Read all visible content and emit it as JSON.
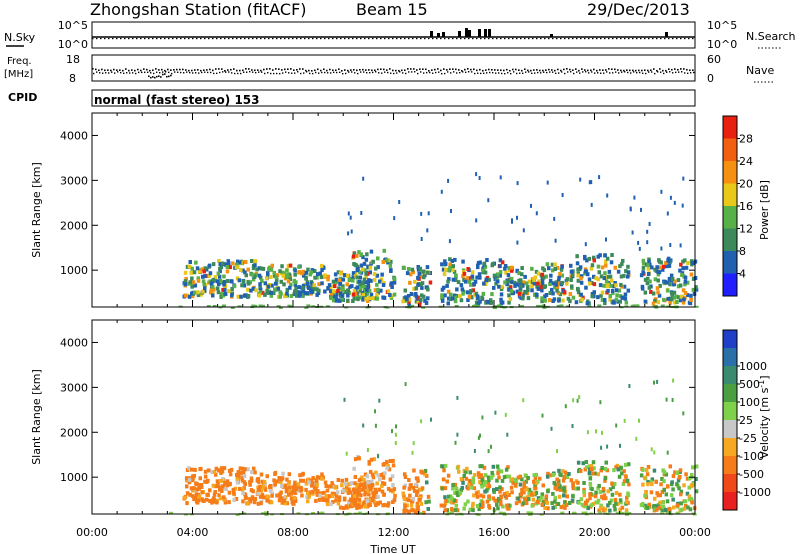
{
  "header": {
    "title": "Zhongshan Station (fitACF)",
    "beam": "Beam 15",
    "date": "29/Dec/2013"
  },
  "nsky_panel": {
    "left_label": "N.Sky",
    "left_ticks": [
      "10^5",
      "10^0"
    ],
    "right_label": "N.Search",
    "right_ticks": [
      "10^5",
      "10^0"
    ]
  },
  "freq_panel": {
    "left_label_top": "Freq.",
    "left_label_bottom": "[MHz]",
    "left_ticks": [
      "18",
      "8"
    ],
    "right_label": "Nave",
    "right_ticks": [
      "60",
      "0"
    ]
  },
  "cpid": {
    "label": "CPID",
    "value": "normal (fast stereo) 153"
  },
  "x_axis": {
    "title": "Time UT",
    "ticks": [
      "00:00",
      "04:00",
      "08:00",
      "12:00",
      "16:00",
      "20:00",
      "00:00"
    ]
  },
  "colors": {
    "power_scale": [
      "#1f1fff",
      "#2060b0",
      "#3c8a5a",
      "#58b048",
      "#e8c818",
      "#f59010",
      "#f06010",
      "#e82010"
    ],
    "velocity_scale": [
      "#e82020",
      "#f04818",
      "#f57c18",
      "#f6a820",
      "#c8c8c8",
      "#7fd04a",
      "#4aa040",
      "#3a8a70",
      "#2a70a8",
      "#2040c8"
    ]
  },
  "chart_data": [
    {
      "type": "heatmap",
      "name": "power-panel",
      "title": "",
      "xlabel": "Time UT",
      "ylabel": "Slant Range [km]",
      "x_range_hours": [
        0,
        24
      ],
      "ylim": [
        180,
        4500
      ],
      "yticks": [
        "1000",
        "2000",
        "3000",
        "4000"
      ],
      "colorbar": {
        "label": "Power [dB]",
        "ticks": [
          "4",
          "8",
          "12",
          "16",
          "20",
          "24",
          "28"
        ],
        "range": [
          0,
          30
        ]
      },
      "main_echo_region": {
        "time_hours": [
          3.5,
          21.3
        ],
        "range_km": [
          400,
          1300
        ],
        "peak_power_db": 28
      }
    },
    {
      "type": "heatmap",
      "name": "velocity-panel",
      "title": "",
      "xlabel": "Time UT",
      "ylabel": "Slant Range [km]",
      "x_range_hours": [
        0,
        24
      ],
      "ylim": [
        180,
        4500
      ],
      "yticks": [
        "1000",
        "2000",
        "3000",
        "4000"
      ],
      "colorbar": {
        "label": "Velocity [m s",
        "label_sup": "-1",
        "label_end": "]",
        "ticks": [
          "1000",
          "500",
          "100",
          "25",
          "-25",
          "-100",
          "-500",
          "-1000"
        ]
      }
    }
  ]
}
